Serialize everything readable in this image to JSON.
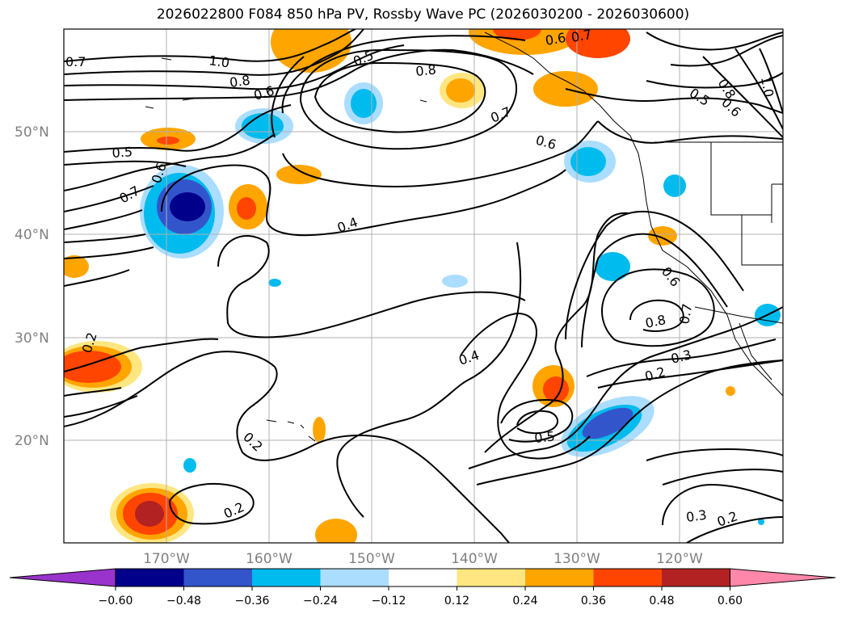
{
  "title": "2026022800 F084 850 hPa PV, Rossby Wave PC (2026030200 - 2026030600)",
  "map": {
    "lon_range": [
      -180,
      -110
    ],
    "lat_range": [
      10,
      60
    ],
    "lat_labels": [
      "20°N",
      "30°N",
      "40°N",
      "50°N"
    ],
    "lon_labels": [
      "170°W",
      "160°W",
      "150°W",
      "140°W",
      "130°W",
      "120°W"
    ],
    "contour_labels": [
      "1.0",
      "0.8",
      "0.7",
      "0.6",
      "0.5",
      "0.6",
      "0.5",
      "0.7",
      "0.6",
      "0.4",
      "0.8",
      "0.7",
      "0.6",
      "0.5",
      "0.8",
      "0.6",
      "1.0",
      "0.6",
      "0.8",
      "0.7",
      "0.3",
      "0.2",
      "0.4",
      "0.5",
      "0.2",
      "0.2",
      "0.3",
      "0.2",
      "0.2",
      "0.7"
    ]
  },
  "colorbar": {
    "ticks": [
      "−0.60",
      "−0.48",
      "−0.36",
      "−0.24",
      "−0.12",
      "0.12",
      "0.24",
      "0.36",
      "0.48",
      "0.60"
    ],
    "colors": [
      "#9933cc",
      "#00008b",
      "#3355cc",
      "#00bbee",
      "#aaddff",
      "#ffffff",
      "#ffe680",
      "#ffa500",
      "#ff4500",
      "#b22222",
      "#ff88aa"
    ]
  }
}
